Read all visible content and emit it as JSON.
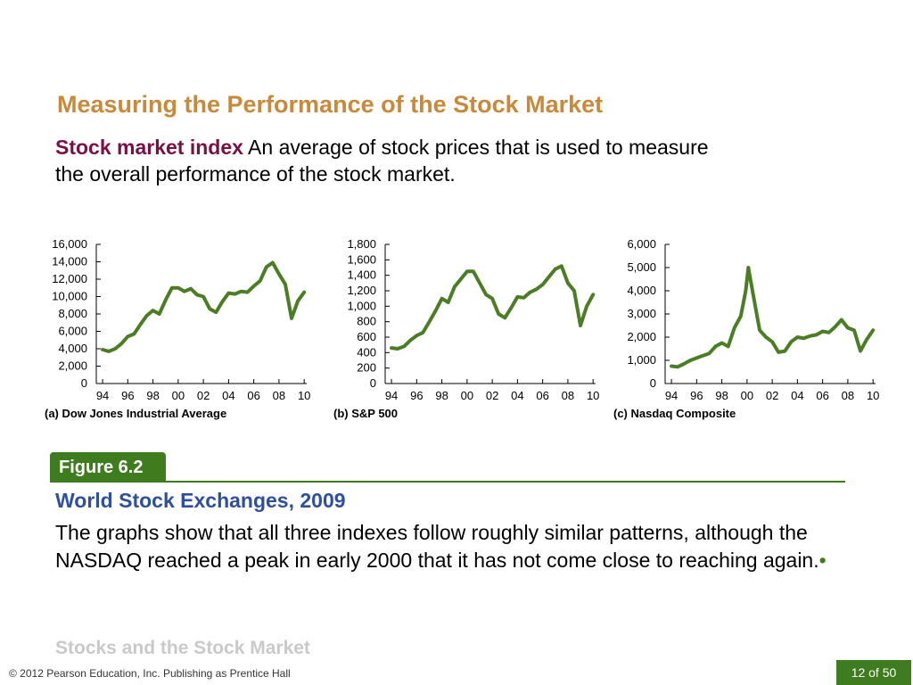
{
  "slide": {
    "heading": "Measuring the Performance of the Stock Market",
    "definition_term": "Stock market index",
    "definition_text": "An average of stock prices that is used to measure the overall performance of the stock market."
  },
  "figure": {
    "label": "Figure 6.2",
    "title": "World Stock Exchanges, 2009",
    "description": "The graphs show that all three indexes follow roughly similar patterns, although the NASDAQ reached a peak in early 2000 that it has not come close to reaching again.",
    "bullet": "•"
  },
  "footer": {
    "section": "Stocks and the Stock Market",
    "copyright": "© 2012 Pearson Education, Inc. Publishing as Prentice Hall",
    "page": "12 of 50"
  },
  "colors": {
    "line": "#4a7d24",
    "accent": "#3f7b1f",
    "heading": "#c8893a",
    "term": "#7a0f48",
    "fig_title": "#2e4f9c"
  },
  "chart_data": [
    {
      "type": "line",
      "caption": "(a) Dow Jones Industrial Average",
      "ylim": [
        0,
        16000
      ],
      "yticks": [
        0,
        2000,
        4000,
        6000,
        8000,
        10000,
        12000,
        14000,
        16000
      ],
      "ytick_labels": [
        "0",
        "2,000",
        "4,000",
        "6,000",
        "8,000",
        "10,000",
        "12,000",
        "14,000",
        "16,000"
      ],
      "xlim": [
        1993.5,
        2010.2
      ],
      "xticks": [
        1994,
        1996,
        1998,
        2000,
        2002,
        2004,
        2006,
        2008,
        2010
      ],
      "xtick_labels": [
        "94",
        "96",
        "98",
        "00",
        "02",
        "04",
        "06",
        "08",
        "10"
      ],
      "series": [
        {
          "x": [
            1994,
            1994.5,
            1995,
            1995.5,
            1996,
            1996.5,
            1997,
            1997.5,
            1998,
            1998.5,
            1999,
            1999.5,
            2000,
            2000.5,
            2001,
            2001.5,
            2002,
            2002.5,
            2003,
            2003.5,
            2004,
            2004.5,
            2005,
            2005.5,
            2006,
            2006.5,
            2007,
            2007.5,
            2008,
            2008.5,
            2009,
            2009.5,
            2010
          ],
          "y": [
            3900,
            3700,
            4000,
            4600,
            5400,
            5700,
            6800,
            7800,
            8400,
            8000,
            9600,
            11000,
            11000,
            10600,
            10900,
            10200,
            10000,
            8600,
            8200,
            9400,
            10400,
            10300,
            10600,
            10500,
            11200,
            11800,
            13400,
            13900,
            12600,
            11400,
            7500,
            9500,
            10500
          ]
        }
      ]
    },
    {
      "type": "line",
      "caption": "(b) S&P 500",
      "ylim": [
        0,
        1800
      ],
      "yticks": [
        0,
        200,
        400,
        600,
        800,
        1000,
        1200,
        1400,
        1600,
        1800
      ],
      "ytick_labels": [
        "0",
        "200",
        "400",
        "600",
        "800",
        "1,000",
        "1,200",
        "1,400",
        "1,600",
        "1,800"
      ],
      "xlim": [
        1993.5,
        2010.2
      ],
      "xticks": [
        1994,
        1996,
        1998,
        2000,
        2002,
        2004,
        2006,
        2008,
        2010
      ],
      "xtick_labels": [
        "94",
        "96",
        "98",
        "00",
        "02",
        "04",
        "06",
        "08",
        "10"
      ],
      "series": [
        {
          "x": [
            1994,
            1994.5,
            1995,
            1995.5,
            1996,
            1996.5,
            1997,
            1997.5,
            1998,
            1998.5,
            1999,
            1999.5,
            2000,
            2000.5,
            2001,
            2001.5,
            2002,
            2002.5,
            2003,
            2003.5,
            2004,
            2004.5,
            2005,
            2005.5,
            2006,
            2006.5,
            2007,
            2007.5,
            2008,
            2008.5,
            2009,
            2009.5,
            2010
          ],
          "y": [
            460,
            450,
            480,
            560,
            620,
            660,
            800,
            940,
            1100,
            1050,
            1250,
            1350,
            1450,
            1450,
            1300,
            1150,
            1100,
            900,
            850,
            980,
            1120,
            1110,
            1180,
            1220,
            1280,
            1380,
            1480,
            1520,
            1300,
            1200,
            750,
            1000,
            1150
          ]
        }
      ]
    },
    {
      "type": "line",
      "caption": "(c) Nasdaq Composite",
      "ylim": [
        0,
        6000
      ],
      "yticks": [
        0,
        1000,
        2000,
        3000,
        4000,
        5000,
        6000
      ],
      "ytick_labels": [
        "0",
        "1,000",
        "2,000",
        "3,000",
        "4,000",
        "5,000",
        "6,000"
      ],
      "xlim": [
        1993.5,
        2010.2
      ],
      "xticks": [
        1994,
        1996,
        1998,
        2000,
        2002,
        2004,
        2006,
        2008,
        2010
      ],
      "xtick_labels": [
        "94",
        "96",
        "98",
        "00",
        "02",
        "04",
        "06",
        "08",
        "10"
      ],
      "series": [
        {
          "x": [
            1994,
            1994.5,
            1995,
            1995.5,
            1996,
            1996.5,
            1997,
            1997.5,
            1998,
            1998.5,
            1999,
            1999.5,
            1999.9,
            2000.1,
            2000.5,
            2001,
            2001.5,
            2002,
            2002.5,
            2003,
            2003.5,
            2004,
            2004.5,
            2005,
            2005.5,
            2006,
            2006.5,
            2007,
            2007.5,
            2008,
            2008.5,
            2009,
            2009.5,
            2010
          ],
          "y": [
            750,
            720,
            850,
            1000,
            1100,
            1200,
            1300,
            1600,
            1750,
            1600,
            2400,
            2900,
            4000,
            5000,
            3800,
            2300,
            2000,
            1800,
            1350,
            1400,
            1800,
            2000,
            1950,
            2050,
            2100,
            2250,
            2200,
            2450,
            2750,
            2400,
            2300,
            1400,
            1900,
            2300
          ]
        }
      ]
    }
  ]
}
